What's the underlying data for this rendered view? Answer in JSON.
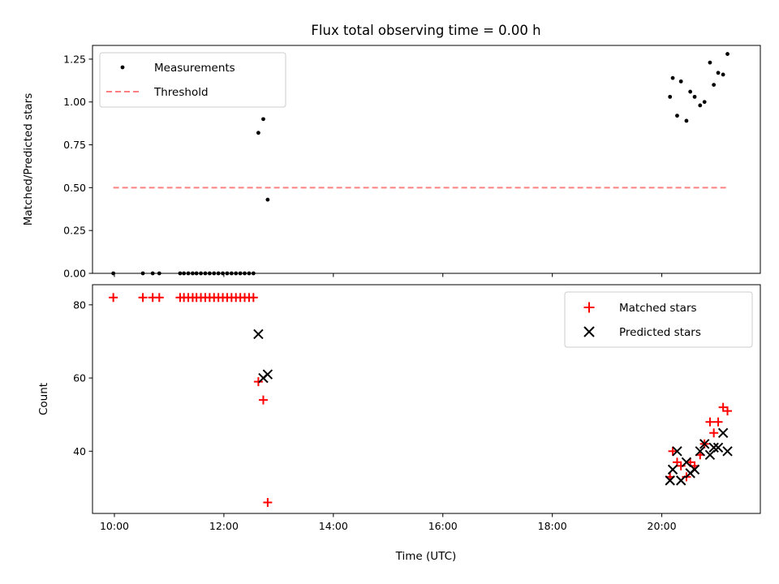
{
  "chart_data": [
    {
      "type": "scatter",
      "title": "Flux total observing time = 0.00 h",
      "ylabel": "Matched/Predicted stars",
      "xlabel": "",
      "xlim": [
        9.6,
        21.8
      ],
      "ylim": [
        0,
        1.33
      ],
      "yticks": [
        "0.00",
        "0.25",
        "0.50",
        "0.75",
        "1.00",
        "1.25"
      ],
      "legend_position": "top-left",
      "series": [
        {
          "name": "Measurements",
          "color": "#000000",
          "marker": "dot",
          "points": [
            [
              9.98,
              0
            ],
            [
              10.52,
              0
            ],
            [
              10.7,
              0
            ],
            [
              10.82,
              0
            ],
            [
              11.2,
              0
            ],
            [
              11.27,
              0
            ],
            [
              11.35,
              0
            ],
            [
              11.43,
              0
            ],
            [
              11.5,
              0
            ],
            [
              11.58,
              0
            ],
            [
              11.66,
              0
            ],
            [
              11.74,
              0
            ],
            [
              11.82,
              0
            ],
            [
              11.9,
              0
            ],
            [
              11.98,
              0
            ],
            [
              12.06,
              0
            ],
            [
              12.14,
              0
            ],
            [
              12.22,
              0
            ],
            [
              12.3,
              0
            ],
            [
              12.38,
              0
            ],
            [
              12.46,
              0
            ],
            [
              12.54,
              0
            ],
            [
              12.63,
              0.82
            ],
            [
              12.72,
              0.9
            ],
            [
              12.8,
              0.43
            ],
            [
              20.15,
              1.03
            ],
            [
              20.2,
              1.14
            ],
            [
              20.28,
              0.92
            ],
            [
              20.35,
              1.12
            ],
            [
              20.45,
              0.89
            ],
            [
              20.52,
              1.06
            ],
            [
              20.6,
              1.03
            ],
            [
              20.7,
              0.98
            ],
            [
              20.78,
              1.0
            ],
            [
              20.88,
              1.23
            ],
            [
              20.95,
              1.1
            ],
            [
              21.03,
              1.17
            ],
            [
              21.12,
              1.16
            ],
            [
              21.2,
              1.28
            ]
          ]
        },
        {
          "name": "Threshold",
          "color": "#ff8080",
          "line": "dashed",
          "points": [
            [
              9.98,
              0.5
            ],
            [
              21.2,
              0.5
            ]
          ]
        }
      ]
    },
    {
      "type": "scatter",
      "title": "",
      "ylabel": "Count",
      "xlabel": "Time (UTC)",
      "xlim": [
        9.6,
        21.8
      ],
      "ylim": [
        23,
        85.5
      ],
      "xticks": [
        {
          "value": 10,
          "label": "10:00"
        },
        {
          "value": 12,
          "label": "12:00"
        },
        {
          "value": 14,
          "label": "14:00"
        },
        {
          "value": 16,
          "label": "16:00"
        },
        {
          "value": 18,
          "label": "18:00"
        },
        {
          "value": 20,
          "label": "20:00"
        }
      ],
      "yticks": [
        "40",
        "60",
        "80"
      ],
      "legend_position": "top-right",
      "series": [
        {
          "name": "Matched stars",
          "color": "#ff0000",
          "marker": "plus",
          "points": [
            [
              9.98,
              82
            ],
            [
              10.52,
              82
            ],
            [
              10.7,
              82
            ],
            [
              10.82,
              82
            ],
            [
              11.2,
              82
            ],
            [
              11.27,
              82
            ],
            [
              11.35,
              82
            ],
            [
              11.43,
              82
            ],
            [
              11.5,
              82
            ],
            [
              11.58,
              82
            ],
            [
              11.66,
              82
            ],
            [
              11.74,
              82
            ],
            [
              11.82,
              82
            ],
            [
              11.9,
              82
            ],
            [
              11.98,
              82
            ],
            [
              12.06,
              82
            ],
            [
              12.14,
              82
            ],
            [
              12.22,
              82
            ],
            [
              12.3,
              82
            ],
            [
              12.38,
              82
            ],
            [
              12.46,
              82
            ],
            [
              12.54,
              82
            ],
            [
              12.63,
              59
            ],
            [
              12.72,
              54
            ],
            [
              12.8,
              26
            ],
            [
              20.15,
              33
            ],
            [
              20.2,
              40
            ],
            [
              20.28,
              37
            ],
            [
              20.35,
              36
            ],
            [
              20.45,
              33
            ],
            [
              20.52,
              37
            ],
            [
              20.6,
              36
            ],
            [
              20.7,
              39
            ],
            [
              20.78,
              42
            ],
            [
              20.88,
              48
            ],
            [
              20.95,
              45
            ],
            [
              21.03,
              48
            ],
            [
              21.12,
              52
            ],
            [
              21.2,
              51
            ]
          ]
        },
        {
          "name": "Predicted stars",
          "color": "#000000",
          "marker": "x",
          "points": [
            [
              12.63,
              72
            ],
            [
              12.72,
              60
            ],
            [
              12.8,
              61
            ],
            [
              20.15,
              32
            ],
            [
              20.2,
              35
            ],
            [
              20.28,
              40
            ],
            [
              20.35,
              32
            ],
            [
              20.45,
              37
            ],
            [
              20.52,
              34
            ],
            [
              20.6,
              35
            ],
            [
              20.7,
              40
            ],
            [
              20.78,
              42
            ],
            [
              20.88,
              39
            ],
            [
              20.95,
              41
            ],
            [
              21.03,
              41
            ],
            [
              21.12,
              45
            ],
            [
              21.2,
              40
            ]
          ]
        }
      ]
    }
  ]
}
